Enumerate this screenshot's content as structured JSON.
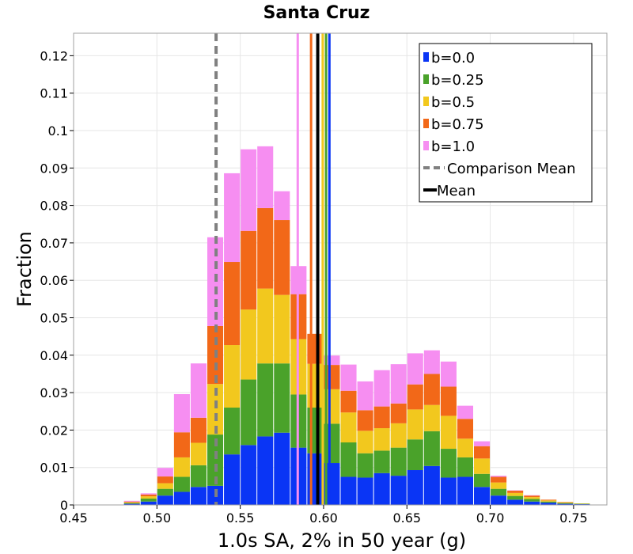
{
  "chart_data": {
    "type": "bar",
    "stacked": true,
    "title": "Santa Cruz",
    "xlabel": "1.0s SA, 2% in 50 year (g)",
    "ylabel": "Fraction",
    "xlim": [
      0.45,
      0.77
    ],
    "ylim": [
      0,
      0.126
    ],
    "bin_width": 0.01,
    "xticks": [
      0.45,
      0.5,
      0.55,
      0.6,
      0.65,
      0.7,
      0.75
    ],
    "xtick_labels": [
      "0.45",
      "0.50",
      "0.55",
      "0.60",
      "0.65",
      "0.70",
      "0.75"
    ],
    "yticks": [
      0,
      0.01,
      0.02,
      0.03,
      0.04,
      0.05,
      0.06,
      0.07,
      0.08,
      0.09,
      0.1,
      0.11,
      0.12
    ],
    "ytick_labels": [
      "0",
      "0.01",
      "0.02",
      "0.03",
      "0.04",
      "0.05",
      "0.06",
      "0.07",
      "0.08",
      "0.09",
      "0.1",
      "0.11",
      "0.12"
    ],
    "grid": true,
    "legend_position": "top-right",
    "bin_centers": [
      0.485,
      0.495,
      0.505,
      0.515,
      0.525,
      0.535,
      0.545,
      0.555,
      0.565,
      0.575,
      0.585,
      0.595,
      0.605,
      0.615,
      0.625,
      0.635,
      0.645,
      0.655,
      0.665,
      0.675,
      0.685,
      0.695,
      0.705,
      0.715,
      0.725,
      0.735,
      0.745,
      0.755
    ],
    "series": [
      {
        "name": "b=0.0",
        "color": "#0a35f5",
        "values": [
          0.0003,
          0.0009,
          0.0025,
          0.0035,
          0.0048,
          0.0051,
          0.0135,
          0.016,
          0.0183,
          0.0193,
          0.0153,
          0.0138,
          0.0112,
          0.0075,
          0.0073,
          0.0085,
          0.0078,
          0.0093,
          0.0104,
          0.0073,
          0.0075,
          0.0048,
          0.0025,
          0.0014,
          0.0009,
          0.0006,
          0.0003,
          0.0002
        ]
      },
      {
        "name": "b=0.25",
        "color": "#4aa22a",
        "values": [
          0.0002,
          0.0008,
          0.0018,
          0.004,
          0.0058,
          0.0137,
          0.0125,
          0.0175,
          0.0195,
          0.0185,
          0.0142,
          0.0122,
          0.0105,
          0.0092,
          0.0065,
          0.006,
          0.0075,
          0.0082,
          0.0093,
          0.0077,
          0.0052,
          0.0035,
          0.0018,
          0.001,
          0.0007,
          0.0003,
          0.0002,
          0.0001
        ]
      },
      {
        "name": "b=0.5",
        "color": "#f2c81e",
        "values": [
          0.0002,
          0.0006,
          0.0015,
          0.0052,
          0.006,
          0.0135,
          0.0167,
          0.0187,
          0.02,
          0.0183,
          0.0148,
          0.0117,
          0.0092,
          0.008,
          0.006,
          0.006,
          0.0065,
          0.008,
          0.007,
          0.0088,
          0.005,
          0.0041,
          0.0017,
          0.0008,
          0.0005,
          0.0003,
          0.0002,
          0.0001
        ]
      },
      {
        "name": "b=0.75",
        "color": "#f26818",
        "values": [
          0.0002,
          0.0005,
          0.0018,
          0.0067,
          0.0067,
          0.0155,
          0.0222,
          0.021,
          0.0215,
          0.02,
          0.012,
          0.008,
          0.0065,
          0.0058,
          0.0055,
          0.0058,
          0.0053,
          0.0067,
          0.0083,
          0.0078,
          0.0053,
          0.0033,
          0.0015,
          0.0006,
          0.0004,
          0.0002,
          0.0001,
          0.0
        ]
      },
      {
        "name": "b=1.0",
        "color": "#f68ef1",
        "values": [
          0.0002,
          0.0003,
          0.0023,
          0.0102,
          0.0145,
          0.0237,
          0.0237,
          0.0218,
          0.0165,
          0.0077,
          0.0075,
          0.0,
          0.0025,
          0.007,
          0.0077,
          0.0097,
          0.0105,
          0.0083,
          0.0063,
          0.0067,
          0.0035,
          0.0013,
          0.0003,
          0.0001,
          0.0001,
          0.0,
          0.0,
          0.0
        ]
      }
    ],
    "mean_lines": [
      {
        "series": "b=0.0",
        "x": 0.6035,
        "color": "#0a35f5"
      },
      {
        "series": "b=0.25",
        "x": 0.6015,
        "color": "#4aa22a"
      },
      {
        "series": "b=0.5",
        "x": 0.5995,
        "color": "#f2c81e"
      },
      {
        "series": "b=0.75",
        "x": 0.5925,
        "color": "#f26818"
      },
      {
        "series": "b=1.0",
        "x": 0.5845,
        "color": "#f68ef1"
      }
    ],
    "comparison_mean": {
      "label": "Comparison Mean",
      "x": 0.5355,
      "color": "#808080",
      "style": "dashed"
    },
    "overall_mean": {
      "label": "Mean",
      "x": 0.5965,
      "color": "#000000"
    }
  }
}
